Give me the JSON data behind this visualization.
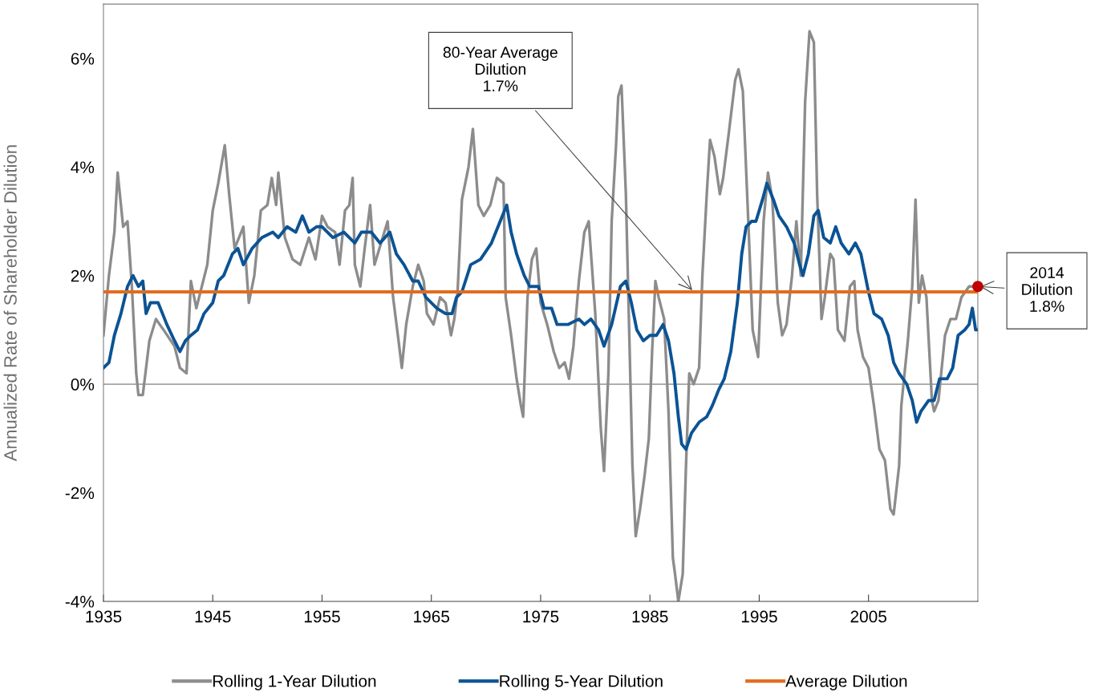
{
  "chart_data": {
    "type": "line",
    "ylabel": "Annualized Rate of Shareholder Dilution",
    "xlim": [
      1935,
      2015
    ],
    "xticks": [
      1935,
      1945,
      1955,
      1965,
      1975,
      1985,
      1995,
      2005
    ],
    "ylim": [
      -4,
      7
    ],
    "yticks": [
      {
        "value": -4,
        "label": "-4%"
      },
      {
        "value": -2,
        "label": "-2%"
      },
      {
        "value": 0,
        "label": "0%"
      },
      {
        "value": 2,
        "label": "2%"
      },
      {
        "value": 4,
        "label": "4%"
      },
      {
        "value": 6,
        "label": "6%"
      }
    ],
    "grid": false,
    "legend": "bottom",
    "marker": "none",
    "line_style": "solid",
    "ref_lines": [
      {
        "axis": "y",
        "value": 0,
        "label": null,
        "color": "#808080"
      }
    ],
    "series": [
      {
        "name": "Rolling 1-Year Dilution",
        "color": "#8c8c8c",
        "x": [
          1935.0,
          1935.5,
          1936.0,
          1936.3,
          1936.8,
          1937.2,
          1937.6,
          1938.0,
          1938.2,
          1938.6,
          1939.2,
          1939.8,
          1940.5,
          1941.5,
          1942.0,
          1942.6,
          1943.0,
          1943.5,
          1944.0,
          1944.5,
          1945.0,
          1945.5,
          1946.1,
          1946.5,
          1947.0,
          1947.8,
          1948.3,
          1948.8,
          1949.4,
          1950.0,
          1950.4,
          1950.8,
          1951.0,
          1951.6,
          1952.3,
          1953.0,
          1953.8,
          1954.4,
          1955.0,
          1955.5,
          1956.2,
          1956.6,
          1957.1,
          1957.5,
          1957.8,
          1958.0,
          1958.5,
          1958.9,
          1959.4,
          1959.8,
          1960.4,
          1961.0,
          1961.5,
          1962.0,
          1962.3,
          1962.7,
          1963.3,
          1963.8,
          1964.3,
          1964.6,
          1965.2,
          1965.8,
          1966.3,
          1966.8,
          1967.1,
          1967.4,
          1967.8,
          1968.4,
          1968.8,
          1969.3,
          1969.8,
          1970.4,
          1971.0,
          1971.6,
          1971.8,
          1972.3,
          1972.8,
          1973.2,
          1973.4,
          1973.8,
          1974.2,
          1974.6,
          1975.0,
          1975.6,
          1976.2,
          1976.7,
          1977.2,
          1977.6,
          1978.0,
          1978.5,
          1979.0,
          1979.4,
          1980.0,
          1980.5,
          1980.8,
          1981.2,
          1981.5,
          1981.9,
          1982.1,
          1982.4,
          1982.8,
          1983.1,
          1983.4,
          1983.7,
          1984.1,
          1984.5,
          1984.9,
          1985.2,
          1985.5,
          1985.8,
          1986.3,
          1986.7,
          1987.1,
          1987.3,
          1987.6,
          1988.0,
          1988.3,
          1988.6,
          1989.0,
          1989.5,
          1989.8,
          1990.2,
          1990.5,
          1990.9,
          1991.4,
          1991.7,
          1992.2,
          1992.8,
          1993.1,
          1993.5,
          1994.0,
          1994.4,
          1994.9,
          1995.4,
          1995.8,
          1996.2,
          1996.7,
          1997.1,
          1997.5,
          1998.0,
          1998.4,
          1998.8,
          1999.2,
          1999.6,
          2000.0,
          2000.3,
          2000.7,
          2001.0,
          2001.5,
          2001.8,
          2002.2,
          2002.5,
          2002.8,
          2003.3,
          2003.7,
          2004.0,
          2004.5,
          2005.0,
          2005.5,
          2006.0,
          2006.5,
          2007.0,
          2007.3,
          2007.8,
          2008.0,
          2008.6,
          2009.0,
          2009.3,
          2009.6,
          2009.9,
          2010.3,
          2010.8,
          2011.0,
          2011.4,
          2012.0,
          2012.5,
          2013.0,
          2013.5,
          2014.2,
          2014.8
        ],
        "values": [
          0.9,
          2.0,
          2.8,
          3.9,
          2.9,
          3.0,
          1.8,
          0.2,
          -0.2,
          -0.2,
          0.8,
          1.2,
          1.0,
          0.7,
          0.3,
          0.2,
          1.9,
          1.4,
          1.8,
          2.2,
          3.2,
          3.7,
          4.4,
          3.5,
          2.5,
          2.9,
          1.5,
          2.0,
          3.2,
          3.3,
          3.8,
          3.3,
          3.9,
          2.7,
          2.3,
          2.2,
          2.7,
          2.3,
          3.1,
          2.9,
          2.8,
          2.2,
          3.2,
          3.3,
          3.8,
          2.2,
          1.8,
          2.5,
          3.3,
          2.2,
          2.6,
          3.0,
          1.6,
          0.8,
          0.3,
          1.1,
          1.8,
          2.2,
          1.9,
          1.3,
          1.1,
          1.6,
          1.5,
          0.9,
          1.2,
          1.7,
          3.4,
          4.0,
          4.7,
          3.3,
          3.1,
          3.3,
          3.8,
          3.7,
          1.6,
          0.9,
          0.1,
          -0.4,
          -0.6,
          1.6,
          2.3,
          2.5,
          1.5,
          1.1,
          0.6,
          0.3,
          0.4,
          0.1,
          0.7,
          1.9,
          2.8,
          3.0,
          1.3,
          -0.8,
          -1.6,
          0.2,
          3.0,
          4.4,
          5.3,
          5.5,
          3.5,
          1.0,
          -1.5,
          -2.8,
          -2.3,
          -1.7,
          -1.0,
          0.6,
          1.9,
          1.6,
          1.2,
          -0.5,
          -3.2,
          -3.5,
          -4.0,
          -3.5,
          -1.5,
          0.2,
          0.0,
          0.3,
          2.0,
          3.5,
          4.5,
          4.2,
          3.5,
          3.8,
          4.6,
          5.6,
          5.8,
          5.4,
          3.0,
          1.0,
          0.5,
          3.0,
          3.9,
          3.4,
          1.5,
          0.9,
          1.1,
          2.0,
          3.0,
          2.0,
          5.2,
          6.5,
          6.3,
          3.5,
          1.2,
          1.6,
          2.4,
          2.3,
          1.0,
          0.9,
          0.8,
          1.8,
          1.9,
          1.0,
          0.5,
          0.3,
          -0.4,
          -1.2,
          -1.4,
          -2.3,
          -2.4,
          -1.5,
          -0.4,
          0.8,
          1.8,
          3.4,
          1.5,
          2.0,
          1.6,
          -0.3,
          -0.5,
          -0.3,
          0.9,
          1.2,
          1.2,
          1.6,
          1.8,
          1.8
        ]
      },
      {
        "name": "Rolling 5-Year Dilution",
        "color": "#0b5394",
        "x": [
          1935.0,
          1935.5,
          1936.0,
          1936.6,
          1937.2,
          1937.7,
          1938.2,
          1938.6,
          1938.9,
          1939.3,
          1940.0,
          1940.8,
          1941.5,
          1942.0,
          1942.5,
          1943.0,
          1943.6,
          1944.2,
          1945.0,
          1945.5,
          1946.0,
          1946.8,
          1947.3,
          1947.8,
          1948.6,
          1949.5,
          1950.5,
          1951.0,
          1951.8,
          1952.6,
          1953.2,
          1953.8,
          1954.5,
          1955.0,
          1956.0,
          1957.0,
          1958.0,
          1958.6,
          1959.5,
          1960.3,
          1961.2,
          1961.8,
          1962.5,
          1963.3,
          1963.8,
          1964.5,
          1965.5,
          1966.3,
          1966.9,
          1967.3,
          1967.8,
          1968.6,
          1969.5,
          1970.5,
          1971.5,
          1971.9,
          1972.3,
          1972.8,
          1973.5,
          1974.0,
          1974.8,
          1975.3,
          1976.0,
          1976.5,
          1977.5,
          1978.5,
          1979.0,
          1979.6,
          1980.3,
          1980.8,
          1981.5,
          1982.3,
          1982.8,
          1983.3,
          1983.8,
          1984.4,
          1985.0,
          1985.6,
          1986.2,
          1986.7,
          1987.2,
          1987.6,
          1987.9,
          1988.3,
          1988.8,
          1989.5,
          1990.2,
          1990.7,
          1991.3,
          1991.8,
          1992.4,
          1993.0,
          1993.4,
          1993.8,
          1994.3,
          1994.7,
          1995.3,
          1995.7,
          1996.3,
          1996.8,
          1997.5,
          1998.2,
          1998.7,
          1999.0,
          1999.5,
          2000.0,
          2000.4,
          2000.9,
          2001.5,
          2002.0,
          2002.5,
          2003.2,
          2003.8,
          2004.3,
          2004.6,
          2005.0,
          2005.5,
          2006.2,
          2006.8,
          2007.3,
          2007.8,
          2008.5,
          2009.0,
          2009.4,
          2009.8,
          2010.5,
          2011.0,
          2011.5,
          2012.2,
          2012.7,
          2013.2,
          2013.8,
          2014.2,
          2014.5,
          2014.8,
          2015.0
        ],
        "values": [
          0.3,
          0.4,
          0.9,
          1.3,
          1.8,
          2.0,
          1.8,
          1.9,
          1.3,
          1.5,
          1.5,
          1.1,
          0.8,
          0.6,
          0.8,
          0.9,
          1.0,
          1.3,
          1.5,
          1.9,
          2.0,
          2.4,
          2.5,
          2.2,
          2.5,
          2.7,
          2.8,
          2.7,
          2.9,
          2.8,
          3.1,
          2.8,
          2.9,
          2.9,
          2.7,
          2.8,
          2.6,
          2.8,
          2.8,
          2.6,
          2.8,
          2.4,
          2.2,
          1.9,
          1.9,
          1.6,
          1.4,
          1.3,
          1.3,
          1.6,
          1.7,
          2.2,
          2.3,
          2.6,
          3.1,
          3.3,
          2.8,
          2.4,
          2.0,
          1.8,
          1.8,
          1.4,
          1.4,
          1.1,
          1.1,
          1.2,
          1.1,
          1.2,
          1.0,
          0.7,
          1.1,
          1.8,
          1.9,
          1.5,
          1.0,
          0.8,
          0.9,
          0.9,
          1.1,
          0.8,
          0.2,
          -0.6,
          -1.1,
          -1.2,
          -0.9,
          -0.7,
          -0.6,
          -0.4,
          -0.1,
          0.1,
          0.6,
          1.5,
          2.4,
          2.9,
          3.0,
          3.0,
          3.4,
          3.7,
          3.4,
          3.1,
          2.9,
          2.6,
          2.2,
          2.0,
          2.4,
          3.1,
          3.2,
          2.7,
          2.6,
          2.9,
          2.6,
          2.4,
          2.6,
          2.4,
          2.1,
          1.7,
          1.3,
          1.2,
          0.9,
          0.4,
          0.2,
          0.0,
          -0.3,
          -0.7,
          -0.5,
          -0.3,
          -0.3,
          0.1,
          0.1,
          0.3,
          0.9,
          1.0,
          1.1,
          1.4,
          1.0,
          1.0
        ]
      },
      {
        "name": "Average Dilution",
        "color": "#e06c1f",
        "x": [
          1935,
          2015
        ],
        "values": [
          1.7,
          1.7
        ]
      },
      {
        "type": "scatter",
        "color": "#c00000",
        "marker": "circle",
        "x": [
          2015
        ],
        "values": [
          1.8
        ]
      }
    ],
    "annotations": [
      {
        "text": "80-Year Average\nDilution\n1.7%",
        "x": 1989,
        "y": 1.7
      },
      {
        "text": "2014\nDilution\n1.8%",
        "x": 2015,
        "y": 1.8
      }
    ]
  }
}
